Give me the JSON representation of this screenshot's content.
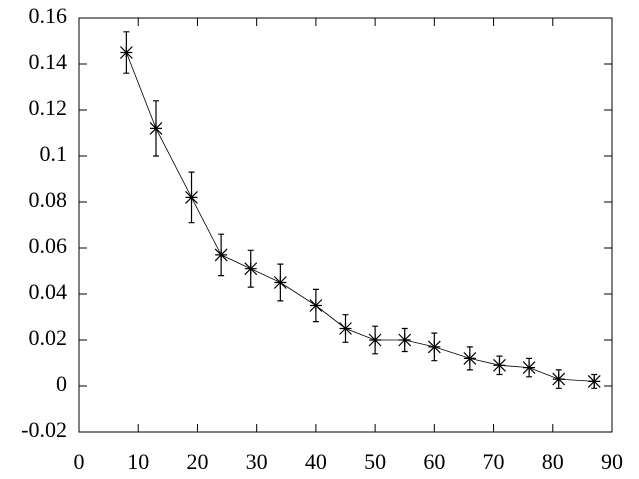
{
  "chart_data": {
    "type": "line",
    "color": "#000000",
    "x": [
      8,
      13,
      19,
      24,
      29,
      34,
      40,
      45,
      50,
      55,
      60,
      66,
      71,
      76,
      81,
      87
    ],
    "values": [
      0.145,
      0.112,
      0.082,
      0.057,
      0.051,
      0.045,
      0.035,
      0.025,
      0.02,
      0.02,
      0.017,
      0.012,
      0.009,
      0.008,
      0.003,
      0.002
    ],
    "errors": [
      0.009,
      0.012,
      0.011,
      0.009,
      0.008,
      0.008,
      0.007,
      0.006,
      0.006,
      0.005,
      0.006,
      0.005,
      0.004,
      0.004,
      0.004,
      0.003
    ],
    "xlim": [
      0,
      90
    ],
    "xticks": [
      0,
      10,
      20,
      30,
      40,
      50,
      60,
      70,
      80,
      90
    ],
    "ylim": [
      -0.02,
      0.16
    ],
    "yticks": [
      -0.02,
      0,
      0.02,
      0.04,
      0.06,
      0.08,
      0.1,
      0.12,
      0.14,
      0.16
    ]
  }
}
